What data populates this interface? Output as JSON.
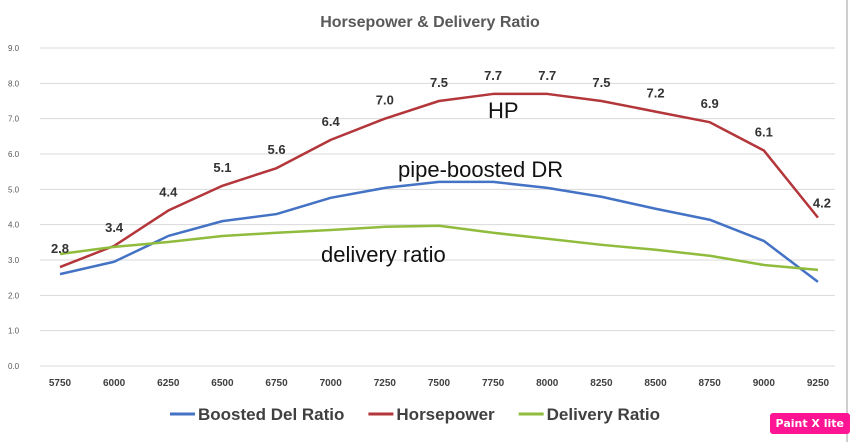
{
  "chart_data": {
    "type": "line",
    "title": "Horsepower & Delivery Ratio",
    "xlabel": "",
    "ylabel": "",
    "categories": [
      "5750",
      "6000",
      "6250",
      "6500",
      "6750",
      "7000",
      "7250",
      "7500",
      "7750",
      "8000",
      "8250",
      "8500",
      "8750",
      "9000",
      "9250"
    ],
    "ylim": [
      0,
      9
    ],
    "yticks": [
      "0.0",
      "1.0",
      "2.0",
      "3.0",
      "4.0",
      "5.0",
      "6.0",
      "7.0",
      "8.0",
      "9.0"
    ],
    "grid": true,
    "legend_position": "bottom",
    "series": [
      {
        "name": "Boosted Del Ratio",
        "color": "#4472c4",
        "values": [
          2.6,
          2.95,
          3.68,
          4.1,
          4.3,
          4.76,
          5.04,
          5.21,
          5.21,
          5.04,
          4.79,
          4.45,
          4.14,
          3.54,
          2.38
        ]
      },
      {
        "name": "Horsepower",
        "color": "#b3363a",
        "values": [
          2.8,
          3.4,
          4.4,
          5.1,
          5.6,
          6.4,
          7.0,
          7.5,
          7.7,
          7.7,
          7.5,
          7.2,
          6.9,
          6.1,
          4.2
        ],
        "data_labels": [
          "2.8",
          "3.4",
          "4.4",
          "5.1",
          "5.6",
          "6.4",
          "7.0",
          "7.5",
          "7.7",
          "7.7",
          "7.5",
          "7.2",
          "6.9",
          "6.1",
          "4.2"
        ]
      },
      {
        "name": "Delivery Ratio",
        "color": "#8fbc3c",
        "values": [
          3.17,
          3.37,
          3.51,
          3.68,
          3.77,
          3.85,
          3.94,
          3.97,
          3.77,
          3.6,
          3.43,
          3.29,
          3.12,
          2.86,
          2.72
        ]
      }
    ],
    "annotations": [
      "HP",
      "pipe-boosted DR",
      "delivery ratio"
    ]
  },
  "watermark": "Paint X lite"
}
